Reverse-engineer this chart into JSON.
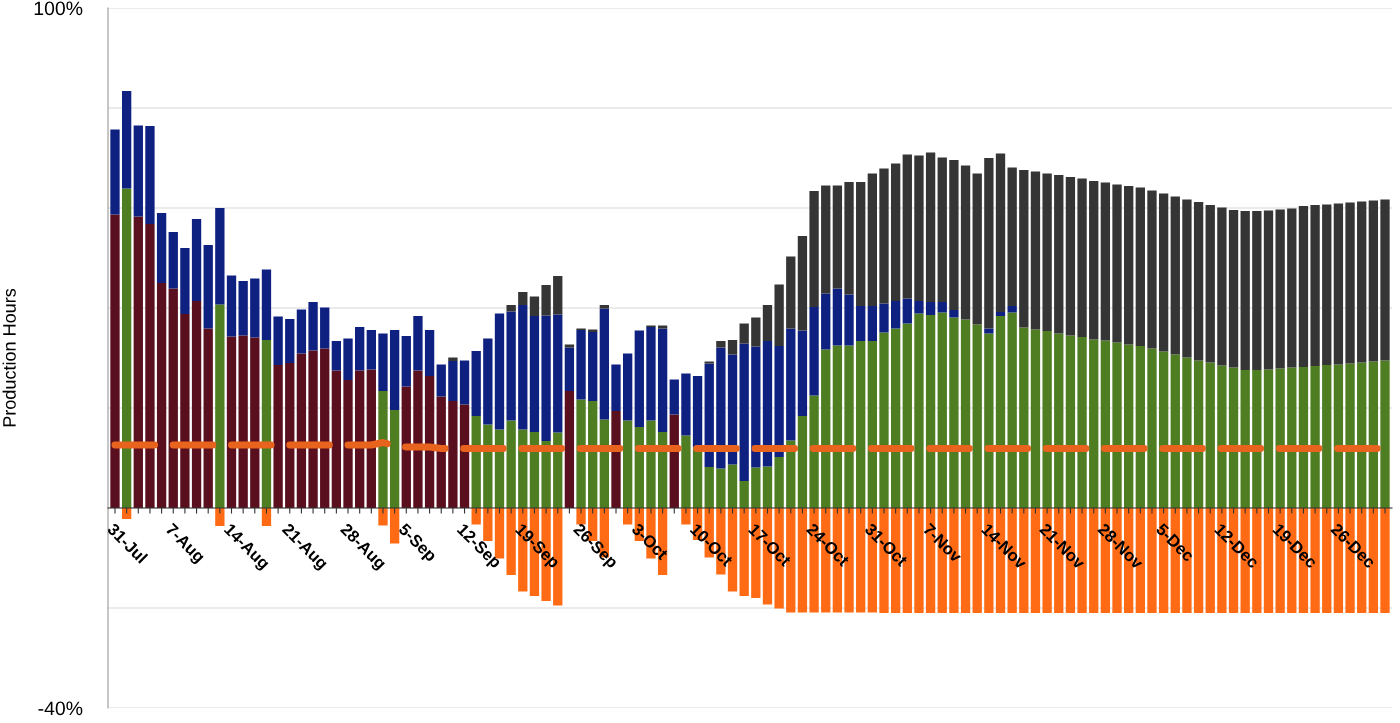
{
  "chart_data": {
    "type": "bar",
    "stacked": true,
    "ylabel": "Production Hours",
    "categories": [
      "31-Jul",
      null,
      null,
      null,
      null,
      "7-Aug",
      null,
      null,
      null,
      null,
      "14-Aug",
      null,
      null,
      null,
      null,
      "21-Aug",
      null,
      null,
      null,
      null,
      "28-Aug",
      null,
      null,
      null,
      null,
      "5-Sep",
      null,
      null,
      null,
      null,
      "12-Sep",
      null,
      null,
      null,
      null,
      "19-Sep",
      null,
      null,
      null,
      null,
      "26-Sep",
      null,
      null,
      null,
      null,
      "3-Oct",
      null,
      null,
      null,
      null,
      "10-Oct",
      null,
      null,
      null,
      null,
      "17-Oct",
      null,
      null,
      null,
      null,
      "24-Oct",
      null,
      null,
      null,
      null,
      "31-Oct",
      null,
      null,
      null,
      null,
      "7-Nov",
      null,
      null,
      null,
      null,
      "14-Nov",
      null,
      null,
      null,
      null,
      "21-Nov",
      null,
      null,
      null,
      null,
      "28-Nov",
      null,
      null,
      null,
      null,
      "5-Dec",
      null,
      null,
      null,
      null,
      "12-Dec",
      null,
      null,
      null,
      null,
      "19-Dec",
      null,
      null,
      null,
      null,
      "26-Dec",
      null,
      null,
      null,
      null
    ],
    "ylim": [
      -40,
      100
    ],
    "yticks": [
      {
        "value": -40,
        "label": "-40%"
      },
      {
        "value": -20,
        "label": null
      },
      {
        "value": 0,
        "label": null
      },
      {
        "value": 20,
        "label": null
      },
      {
        "value": 40,
        "label": null
      },
      {
        "value": 60,
        "label": null
      },
      {
        "value": 80,
        "label": null
      },
      {
        "value": 100,
        "label": "100%"
      }
    ],
    "grid": "y",
    "series": [
      {
        "color": "#5a0f1e",
        "values": [
          58.7,
          null,
          58.3,
          56.8,
          45.0,
          43.9,
          38.8,
          41.4,
          35.9,
          null,
          34.3,
          34.5,
          34.1,
          null,
          28.6,
          29.0,
          30.9,
          31.5,
          31.9,
          27.5,
          25.6,
          27.5,
          27.7,
          null,
          null,
          24.3,
          27.5,
          26.4,
          22.3,
          21.4,
          20.7,
          null,
          null,
          null,
          null,
          null,
          null,
          null,
          null,
          23.4,
          null,
          null,
          null,
          19.4,
          null,
          null,
          null,
          null,
          18.7,
          null,
          null,
          null,
          null,
          null,
          null,
          null,
          null,
          null,
          null,
          null,
          null,
          null,
          null,
          null,
          null,
          null,
          null,
          null,
          null,
          null,
          null,
          null,
          null,
          null,
          null,
          null,
          null,
          null,
          null,
          null,
          null,
          null,
          null,
          null,
          null,
          null,
          null,
          null,
          null,
          null,
          null,
          null,
          null,
          null,
          null,
          null,
          null,
          null,
          null,
          null,
          null,
          null,
          null,
          null,
          null,
          null,
          null,
          null,
          null,
          null
        ]
      },
      {
        "color": "#4e7d22",
        "values": [
          null,
          63.9,
          null,
          null,
          null,
          null,
          null,
          null,
          null,
          40.7,
          null,
          null,
          null,
          33.6,
          null,
          null,
          null,
          null,
          null,
          null,
          null,
          null,
          null,
          23.4,
          19.6,
          null,
          null,
          null,
          null,
          null,
          null,
          18.4,
          16.7,
          15.7,
          17.5,
          15.7,
          15.2,
          13.4,
          15.1,
          null,
          21.7,
          21.4,
          17.7,
          null,
          17.5,
          16.2,
          17.5,
          15.2,
          null,
          14.5,
          12.1,
          8.2,
          7.9,
          8.7,
          5.4,
          8.1,
          8.3,
          10.2,
          13.5,
          18.4,
          22.5,
          31.7,
          32.5,
          32.5,
          33.4,
          33.4,
          35.1,
          35.9,
          36.9,
          38.9,
          38.6,
          39.1,
          38.1,
          37.7,
          36.7,
          34.9,
          38.4,
          39.1,
          36.1,
          35.7,
          35.4,
          34.9,
          34.5,
          34.2,
          33.7,
          33.5,
          33.1,
          32.7,
          32.4,
          31.9,
          31.3,
          30.7,
          30.1,
          29.5,
          29.1,
          28.5,
          28.1,
          27.6,
          27.6,
          27.7,
          27.9,
          28.1,
          28.2,
          28.4,
          28.6,
          28.7,
          28.9,
          29.1,
          29.3,
          29.5
        ]
      },
      {
        "color": "#0f2180",
        "values": [
          17.0,
          19.5,
          18.2,
          19.6,
          14.0,
          11.3,
          13.2,
          16.4,
          16.7,
          19.3,
          12.2,
          10.9,
          11.8,
          14.1,
          9.7,
          8.8,
          8.8,
          9.7,
          8.2,
          5.9,
          8.3,
          8.7,
          7.9,
          11.5,
          16.0,
          10.1,
          10.9,
          9.2,
          6.4,
          8.0,
          8.8,
          13.0,
          17.2,
          23.2,
          21.8,
          24.9,
          23.2,
          25.1,
          23.6,
          8.7,
          13.9,
          13.8,
          22.2,
          9.3,
          13.4,
          19.3,
          18.7,
          20.7,
          7.0,
          12.4,
          14.3,
          20.7,
          24.2,
          22.0,
          27.5,
          24.2,
          25.1,
          22.2,
          22.4,
          17.1,
          17.7,
          11.2,
          11.4,
          10.2,
          7.0,
          7.0,
          5.8,
          5.5,
          5.0,
          2.5,
          2.6,
          2.1,
          1.5,
          null,
          null,
          1.0,
          0.8,
          1.3,
          null,
          null,
          null,
          null,
          null,
          null,
          null,
          null,
          null,
          null,
          null,
          null,
          null,
          null,
          null,
          null,
          null,
          null,
          null,
          null,
          null,
          null,
          null,
          null,
          null,
          null,
          null,
          null,
          null,
          null,
          null,
          null
        ]
      },
      {
        "color": "#353535",
        "values": [
          null,
          null,
          null,
          null,
          null,
          null,
          null,
          null,
          null,
          null,
          null,
          null,
          null,
          null,
          null,
          null,
          null,
          null,
          null,
          null,
          null,
          null,
          null,
          null,
          null,
          null,
          null,
          null,
          null,
          0.7,
          null,
          null,
          null,
          null,
          1.3,
          2.6,
          3.9,
          6.1,
          7.7,
          0.6,
          0.3,
          0.5,
          0.7,
          null,
          null,
          null,
          0.3,
          0.6,
          null,
          null,
          null,
          0.4,
          1.3,
          2.9,
          4.0,
          5.8,
          7.2,
          12.3,
          14.4,
          18.9,
          23.2,
          21.6,
          20.6,
          22.5,
          24.8,
          26.5,
          27.0,
          27.5,
          28.8,
          29.1,
          29.9,
          28.9,
          30.0,
          30.8,
          30.2,
          34.1,
          31.7,
          27.7,
          31.5,
          31.6,
          31.5,
          31.7,
          31.7,
          31.7,
          31.7,
          31.6,
          31.6,
          31.7,
          31.7,
          31.6,
          31.6,
          31.6,
          31.6,
          31.7,
          31.5,
          31.6,
          31.5,
          31.8,
          31.8,
          31.8,
          31.8,
          31.8,
          32.2,
          32.2,
          32.1,
          32.2,
          32.2,
          32.2,
          32.2,
          32.2
        ]
      },
      {
        "color": "#ff6b14",
        "values": [
          null,
          -2.2,
          null,
          null,
          null,
          null,
          null,
          null,
          null,
          -3.6,
          null,
          null,
          null,
          -3.6,
          null,
          null,
          null,
          null,
          null,
          null,
          null,
          null,
          null,
          -3.5,
          -7.1,
          null,
          null,
          null,
          null,
          null,
          null,
          -3.3,
          -6.6,
          -10.1,
          -13.4,
          -16.7,
          -17.6,
          -18.6,
          -19.5,
          null,
          -3.3,
          -6.6,
          -9.9,
          null,
          -3.3,
          -6.6,
          -10.1,
          -13.4,
          null,
          -3.3,
          -6.4,
          -9.9,
          -13.3,
          -16.7,
          -17.6,
          -18.0,
          -19.3,
          -20.1,
          -20.9,
          -20.9,
          -20.9,
          -20.9,
          -20.9,
          -20.9,
          -20.9,
          -20.9,
          -21.0,
          -21.0,
          -21.0,
          -21.0,
          -21.0,
          -21.0,
          -21.0,
          -21.0,
          -21.0,
          -21.0,
          -21.0,
          -21.0,
          -21.0,
          -21.0,
          -21.0,
          -21.0,
          -21.0,
          -21.0,
          -21.0,
          -21.0,
          -21.0,
          -21.0,
          -21.0,
          -21.0,
          -21.0,
          -21.0,
          -21.0,
          -21.0,
          -21.0,
          -21.0,
          -21.0,
          -21.0,
          -21.0,
          -21.0,
          -21.0,
          -21.0,
          -21.0,
          -21.0,
          -21.0,
          -21.0,
          -21.0,
          -21.0,
          -21.0,
          -21.0
        ]
      },
      {
        "type": "line",
        "line_style": "dashed",
        "color": "#e8641e",
        "values": [
          12.6,
          12.6,
          12.6,
          12.6,
          12.6,
          12.6,
          12.6,
          12.6,
          12.6,
          12.6,
          12.6,
          12.6,
          12.6,
          12.6,
          12.6,
          12.6,
          12.6,
          12.6,
          12.6,
          12.6,
          12.6,
          12.6,
          12.6,
          13.1,
          12.5,
          12.2,
          12.2,
          12.2,
          11.9,
          11.9,
          11.9,
          11.9,
          11.9,
          11.9,
          11.9,
          11.9,
          11.9,
          11.9,
          11.9,
          11.9,
          11.9,
          11.9,
          11.9,
          11.9,
          11.9,
          11.9,
          11.9,
          11.9,
          11.9,
          11.9,
          11.9,
          11.9,
          11.9,
          11.9,
          11.9,
          11.9,
          11.9,
          11.9,
          11.9,
          11.9,
          11.9,
          11.9,
          11.9,
          11.9,
          11.9,
          11.9,
          11.9,
          11.9,
          11.9,
          11.9,
          11.9,
          11.9,
          11.9,
          11.9,
          11.9,
          11.9,
          11.9,
          11.9,
          11.9,
          11.9,
          11.9,
          11.9,
          11.9,
          11.9,
          11.9,
          11.9,
          11.9,
          11.9,
          11.9,
          11.9,
          11.9,
          11.9,
          11.9,
          11.9,
          11.9,
          11.9,
          11.9,
          11.9,
          11.9,
          11.9,
          11.9,
          11.9,
          11.9,
          11.9,
          11.9,
          11.9,
          11.9,
          11.9,
          11.9,
          11.9
        ]
      }
    ]
  }
}
